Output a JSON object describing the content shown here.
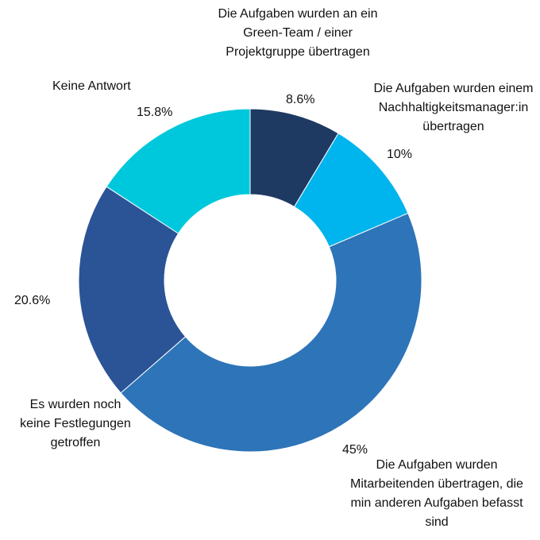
{
  "chart_data": {
    "type": "pie",
    "variant": "donut",
    "slices": [
      {
        "label": [
          "Die Aufgaben wurden an ein",
          "Green-Team / einer",
          "Projektgruppe übertragen"
        ],
        "value_label": "8.6%",
        "value": 8.6,
        "color": "#1e3a63"
      },
      {
        "label": [
          "Die Aufgaben wurden einem",
          "Nachhaltigkeitsmanager:in",
          "übertragen"
        ],
        "value_label": "10%",
        "value": 10,
        "color": "#00b4ee"
      },
      {
        "label": [
          "Die Aufgaben wurden",
          "Mitarbeitenden übertragen, die",
          "min anderen Aufgaben befasst",
          "sind"
        ],
        "value_label": "45%",
        "value": 45,
        "color": "#2e74b8"
      },
      {
        "label": [
          "Es wurden noch",
          "keine Festlegungen",
          "getroffen"
        ],
        "value_label": "20.6%",
        "value": 20.6,
        "color": "#2b5496"
      },
      {
        "label": [
          "Keine Antwort"
        ],
        "value_label": "15.8%",
        "value": 15.8,
        "color": "#00c8dc"
      }
    ]
  }
}
